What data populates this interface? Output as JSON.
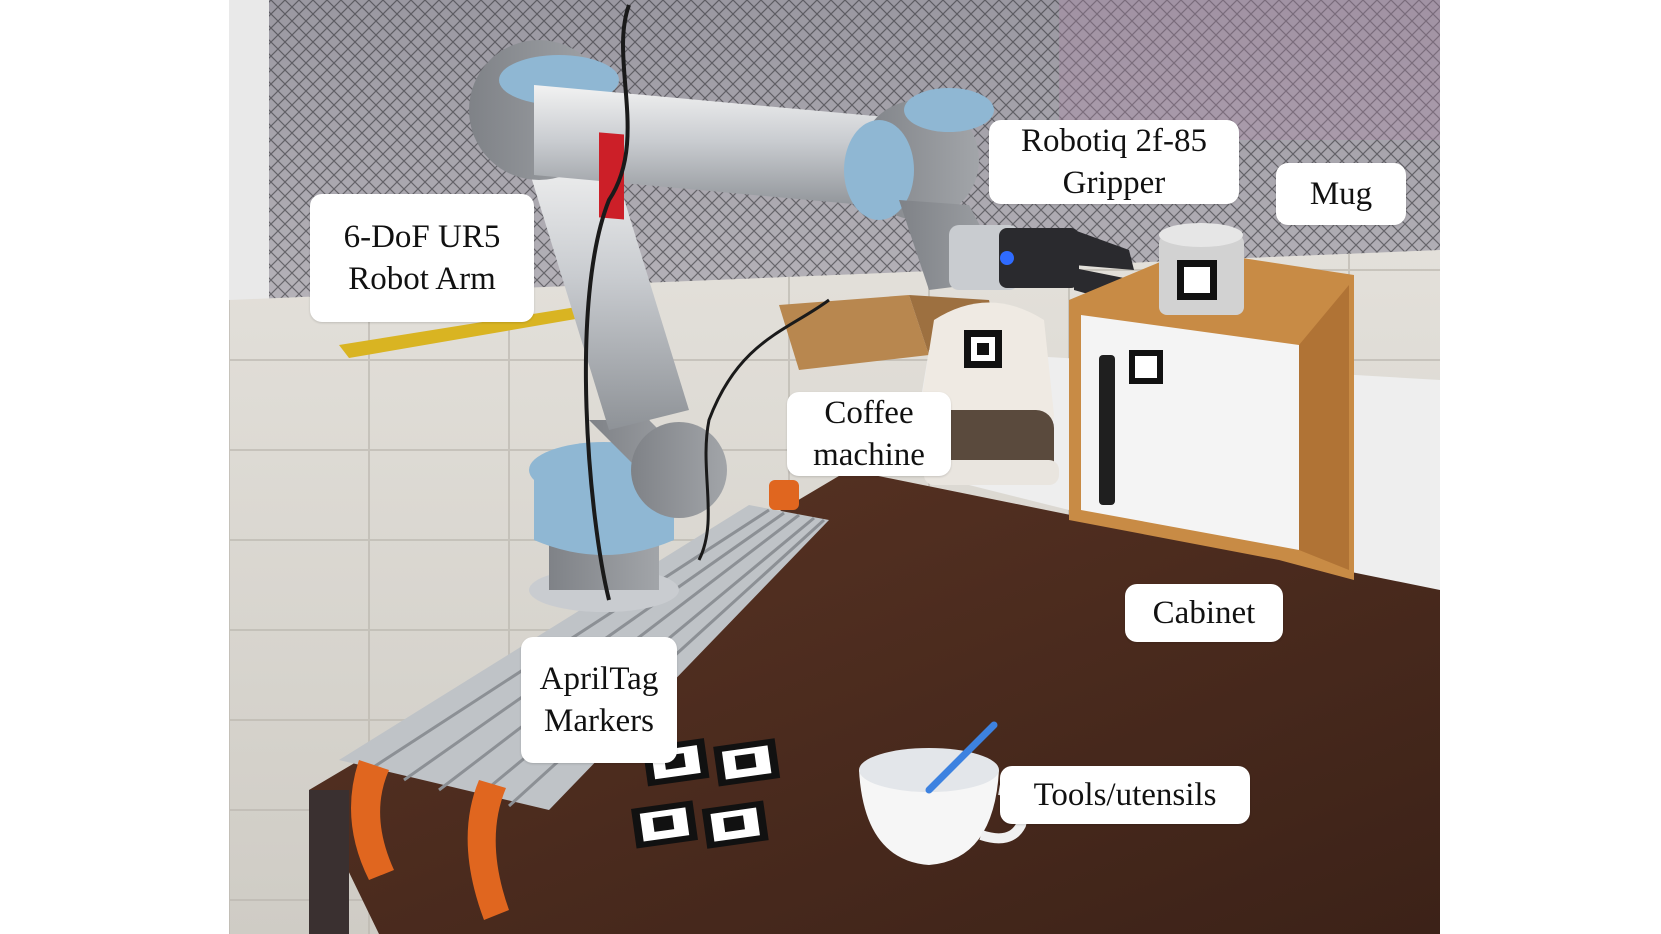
{
  "labels": {
    "robot_arm": {
      "line1": "6-DoF UR5",
      "line2": "Robot Arm"
    },
    "gripper": {
      "line1": "Robotiq 2f-85",
      "line2": "Gripper"
    },
    "mug": "Mug",
    "coffee_machine": {
      "line1": "Coffee",
      "line2": "machine"
    },
    "cabinet": "Cabinet",
    "apriltag_markers": {
      "line1": "AprilTag",
      "line2": "Markers"
    },
    "tools_utensils": "Tools/utensils"
  },
  "colors": {
    "background_white": "#ffffff",
    "label_text": "#111111",
    "table_wood": "#4a2a1d",
    "floor": "#d9d6cf",
    "arm_blue": "#8fb7d3",
    "clamp_orange": "#e0661f"
  }
}
